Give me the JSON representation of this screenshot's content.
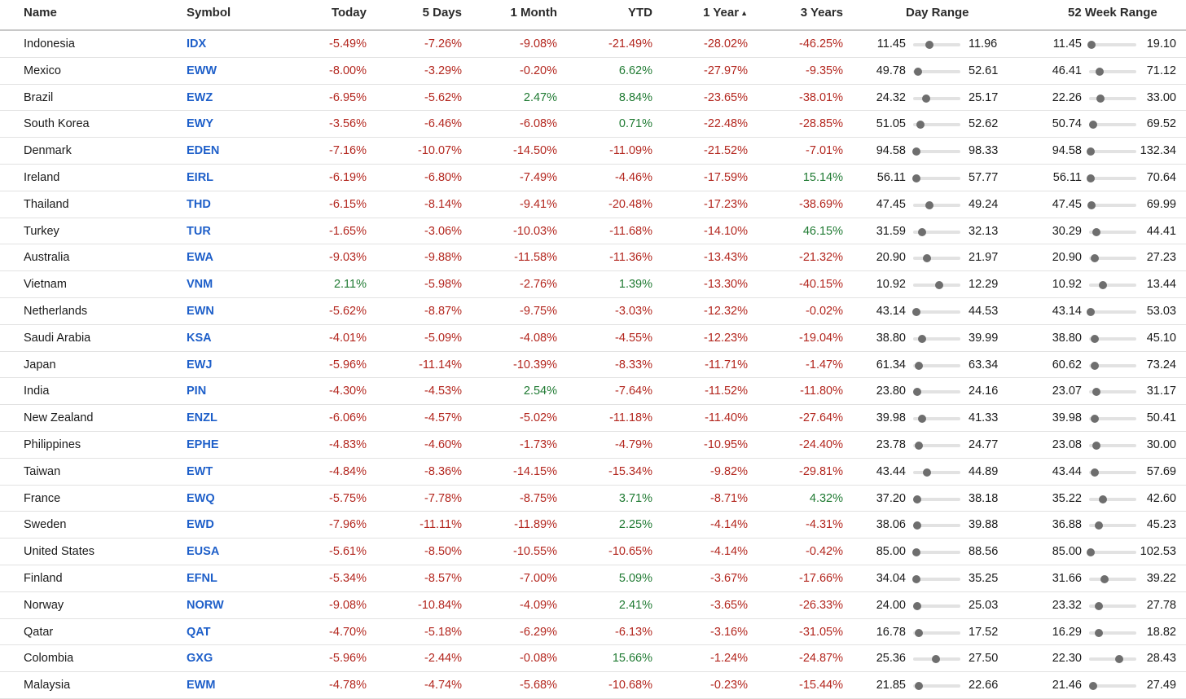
{
  "columns": {
    "name": "Name",
    "symbol": "Symbol",
    "today": "Today",
    "five_days": "5 Days",
    "one_month": "1 Month",
    "ytd": "YTD",
    "one_year": "1 Year",
    "three_years": "3 Years",
    "day_range": "Day Range",
    "week52_range": "52 Week Range"
  },
  "sort": {
    "column": "one_year",
    "direction": "ascending",
    "indicator": "▲"
  },
  "colors": {
    "negative": "#b3261e",
    "positive": "#1f7a32",
    "link": "#1e5fc9"
  },
  "rows": [
    {
      "name": "Indonesia",
      "symbol": "IDX",
      "today": "-5.49%",
      "d5": "-7.26%",
      "m1": "-9.08%",
      "ytd": "-21.49%",
      "y1": "-28.02%",
      "y3": "-46.25%",
      "day_low": "11.45",
      "day_high": "11.96",
      "day_pos": 0.35,
      "w52_low": "11.45",
      "w52_high": "19.10",
      "w52_pos": 0.06
    },
    {
      "name": "Mexico",
      "symbol": "EWW",
      "today": "-8.00%",
      "d5": "-3.29%",
      "m1": "-0.20%",
      "ytd": "6.62%",
      "y1": "-27.97%",
      "y3": "-9.35%",
      "day_low": "49.78",
      "day_high": "52.61",
      "day_pos": 0.1,
      "w52_low": "46.41",
      "w52_high": "71.12",
      "w52_pos": 0.22
    },
    {
      "name": "Brazil",
      "symbol": "EWZ",
      "today": "-6.95%",
      "d5": "-5.62%",
      "m1": "2.47%",
      "ytd": "8.84%",
      "y1": "-23.65%",
      "y3": "-38.01%",
      "day_low": "24.32",
      "day_high": "25.17",
      "day_pos": 0.28,
      "w52_low": "22.26",
      "w52_high": "33.00",
      "w52_pos": 0.24
    },
    {
      "name": "South Korea",
      "symbol": "EWY",
      "today": "-3.56%",
      "d5": "-6.46%",
      "m1": "-6.08%",
      "ytd": "0.71%",
      "y1": "-22.48%",
      "y3": "-28.85%",
      "day_low": "51.05",
      "day_high": "52.62",
      "day_pos": 0.16,
      "w52_low": "50.74",
      "w52_high": "69.52",
      "w52_pos": 0.08
    },
    {
      "name": "Denmark",
      "symbol": "EDEN",
      "today": "-7.16%",
      "d5": "-10.07%",
      "m1": "-14.50%",
      "ytd": "-11.09%",
      "y1": "-21.52%",
      "y3": "-7.01%",
      "day_low": "94.58",
      "day_high": "98.33",
      "day_pos": 0.07,
      "w52_low": "94.58",
      "w52_high": "132.34",
      "w52_pos": 0.04
    },
    {
      "name": "Ireland",
      "symbol": "EIRL",
      "today": "-6.19%",
      "d5": "-6.80%",
      "m1": "-7.49%",
      "ytd": "-4.46%",
      "y1": "-17.59%",
      "y3": "15.14%",
      "day_low": "56.11",
      "day_high": "57.77",
      "day_pos": 0.07,
      "w52_low": "56.11",
      "w52_high": "70.64",
      "w52_pos": 0.04
    },
    {
      "name": "Thailand",
      "symbol": "THD",
      "today": "-6.15%",
      "d5": "-8.14%",
      "m1": "-9.41%",
      "ytd": "-20.48%",
      "y1": "-17.23%",
      "y3": "-38.69%",
      "day_low": "47.45",
      "day_high": "49.24",
      "day_pos": 0.35,
      "w52_low": "47.45",
      "w52_high": "69.99",
      "w52_pos": 0.06
    },
    {
      "name": "Turkey",
      "symbol": "TUR",
      "today": "-1.65%",
      "d5": "-3.06%",
      "m1": "-10.03%",
      "ytd": "-11.68%",
      "y1": "-14.10%",
      "y3": "46.15%",
      "day_low": "31.59",
      "day_high": "32.13",
      "day_pos": 0.19,
      "w52_low": "30.29",
      "w52_high": "44.41",
      "w52_pos": 0.15
    },
    {
      "name": "Australia",
      "symbol": "EWA",
      "today": "-9.03%",
      "d5": "-9.88%",
      "m1": "-11.58%",
      "ytd": "-11.36%",
      "y1": "-13.43%",
      "y3": "-21.32%",
      "day_low": "20.90",
      "day_high": "21.97",
      "day_pos": 0.29,
      "w52_low": "20.90",
      "w52_high": "27.23",
      "w52_pos": 0.12
    },
    {
      "name": "Vietnam",
      "symbol": "VNM",
      "today": "2.11%",
      "d5": "-5.98%",
      "m1": "-2.76%",
      "ytd": "1.39%",
      "y1": "-13.30%",
      "y3": "-40.15%",
      "day_low": "10.92",
      "day_high": "12.29",
      "day_pos": 0.55,
      "w52_low": "10.92",
      "w52_high": "13.44",
      "w52_pos": 0.29
    },
    {
      "name": "Netherlands",
      "symbol": "EWN",
      "today": "-5.62%",
      "d5": "-8.87%",
      "m1": "-9.75%",
      "ytd": "-3.03%",
      "y1": "-12.32%",
      "y3": "-0.02%",
      "day_low": "43.14",
      "day_high": "44.53",
      "day_pos": 0.07,
      "w52_low": "43.14",
      "w52_high": "53.03",
      "w52_pos": 0.04
    },
    {
      "name": "Saudi Arabia",
      "symbol": "KSA",
      "today": "-4.01%",
      "d5": "-5.09%",
      "m1": "-4.08%",
      "ytd": "-4.55%",
      "y1": "-12.23%",
      "y3": "-19.04%",
      "day_low": "38.80",
      "day_high": "39.99",
      "day_pos": 0.19,
      "w52_low": "38.80",
      "w52_high": "45.10",
      "w52_pos": 0.12
    },
    {
      "name": "Japan",
      "symbol": "EWJ",
      "today": "-5.96%",
      "d5": "-11.14%",
      "m1": "-10.39%",
      "ytd": "-8.33%",
      "y1": "-11.71%",
      "y3": "-1.47%",
      "day_low": "61.34",
      "day_high": "63.34",
      "day_pos": 0.12,
      "w52_low": "60.62",
      "w52_high": "73.24",
      "w52_pos": 0.12
    },
    {
      "name": "India",
      "symbol": "PIN",
      "today": "-4.30%",
      "d5": "-4.53%",
      "m1": "2.54%",
      "ytd": "-7.64%",
      "y1": "-11.52%",
      "y3": "-11.80%",
      "day_low": "23.80",
      "day_high": "24.16",
      "day_pos": 0.09,
      "w52_low": "23.07",
      "w52_high": "31.17",
      "w52_pos": 0.15
    },
    {
      "name": "New Zealand",
      "symbol": "ENZL",
      "today": "-6.06%",
      "d5": "-4.57%",
      "m1": "-5.02%",
      "ytd": "-11.18%",
      "y1": "-11.40%",
      "y3": "-27.64%",
      "day_low": "39.98",
      "day_high": "41.33",
      "day_pos": 0.19,
      "w52_low": "39.98",
      "w52_high": "50.41",
      "w52_pos": 0.12
    },
    {
      "name": "Philippines",
      "symbol": "EPHE",
      "today": "-4.83%",
      "d5": "-4.60%",
      "m1": "-1.73%",
      "ytd": "-4.79%",
      "y1": "-10.95%",
      "y3": "-24.40%",
      "day_low": "23.78",
      "day_high": "24.77",
      "day_pos": 0.12,
      "w52_low": "23.08",
      "w52_high": "30.00",
      "w52_pos": 0.15
    },
    {
      "name": "Taiwan",
      "symbol": "EWT",
      "today": "-4.84%",
      "d5": "-8.36%",
      "m1": "-14.15%",
      "ytd": "-15.34%",
      "y1": "-9.82%",
      "y3": "-29.81%",
      "day_low": "43.44",
      "day_high": "44.89",
      "day_pos": 0.29,
      "w52_low": "43.44",
      "w52_high": "57.69",
      "w52_pos": 0.12
    },
    {
      "name": "France",
      "symbol": "EWQ",
      "today": "-5.75%",
      "d5": "-7.78%",
      "m1": "-8.75%",
      "ytd": "3.71%",
      "y1": "-8.71%",
      "y3": "4.32%",
      "day_low": "37.20",
      "day_high": "38.18",
      "day_pos": 0.09,
      "w52_low": "35.22",
      "w52_high": "42.60",
      "w52_pos": 0.29
    },
    {
      "name": "Sweden",
      "symbol": "EWD",
      "today": "-7.96%",
      "d5": "-11.11%",
      "m1": "-11.89%",
      "ytd": "2.25%",
      "y1": "-4.14%",
      "y3": "-4.31%",
      "day_low": "38.06",
      "day_high": "39.88",
      "day_pos": 0.09,
      "w52_low": "36.88",
      "w52_high": "45.23",
      "w52_pos": 0.2
    },
    {
      "name": "United States",
      "symbol": "EUSA",
      "today": "-5.61%",
      "d5": "-8.50%",
      "m1": "-10.55%",
      "ytd": "-10.65%",
      "y1": "-4.14%",
      "y3": "-0.42%",
      "day_low": "85.00",
      "day_high": "88.56",
      "day_pos": 0.07,
      "w52_low": "85.00",
      "w52_high": "102.53",
      "w52_pos": 0.04
    },
    {
      "name": "Finland",
      "symbol": "EFNL",
      "today": "-5.34%",
      "d5": "-8.57%",
      "m1": "-7.00%",
      "ytd": "5.09%",
      "y1": "-3.67%",
      "y3": "-17.66%",
      "day_low": "34.04",
      "day_high": "35.25",
      "day_pos": 0.07,
      "w52_low": "31.66",
      "w52_high": "39.22",
      "w52_pos": 0.33
    },
    {
      "name": "Norway",
      "symbol": "NORW",
      "today": "-9.08%",
      "d5": "-10.84%",
      "m1": "-4.09%",
      "ytd": "2.41%",
      "y1": "-3.65%",
      "y3": "-26.33%",
      "day_low": "24.00",
      "day_high": "25.03",
      "day_pos": 0.09,
      "w52_low": "23.32",
      "w52_high": "27.78",
      "w52_pos": 0.2
    },
    {
      "name": "Qatar",
      "symbol": "QAT",
      "today": "-4.70%",
      "d5": "-5.18%",
      "m1": "-6.29%",
      "ytd": "-6.13%",
      "y1": "-3.16%",
      "y3": "-31.05%",
      "day_low": "16.78",
      "day_high": "17.52",
      "day_pos": 0.12,
      "w52_low": "16.29",
      "w52_high": "18.82",
      "w52_pos": 0.2
    },
    {
      "name": "Colombia",
      "symbol": "GXG",
      "today": "-5.96%",
      "d5": "-2.44%",
      "m1": "-0.08%",
      "ytd": "15.66%",
      "y1": "-1.24%",
      "y3": "-24.87%",
      "day_low": "25.36",
      "day_high": "27.50",
      "day_pos": 0.48,
      "w52_low": "22.30",
      "w52_high": "28.43",
      "w52_pos": 0.64
    },
    {
      "name": "Malaysia",
      "symbol": "EWM",
      "today": "-4.78%",
      "d5": "-4.74%",
      "m1": "-5.68%",
      "ytd": "-10.68%",
      "y1": "-0.23%",
      "y3": "-15.44%",
      "day_low": "21.85",
      "day_high": "22.66",
      "day_pos": 0.12,
      "w52_low": "21.46",
      "w52_high": "27.49",
      "w52_pos": 0.08
    }
  ]
}
